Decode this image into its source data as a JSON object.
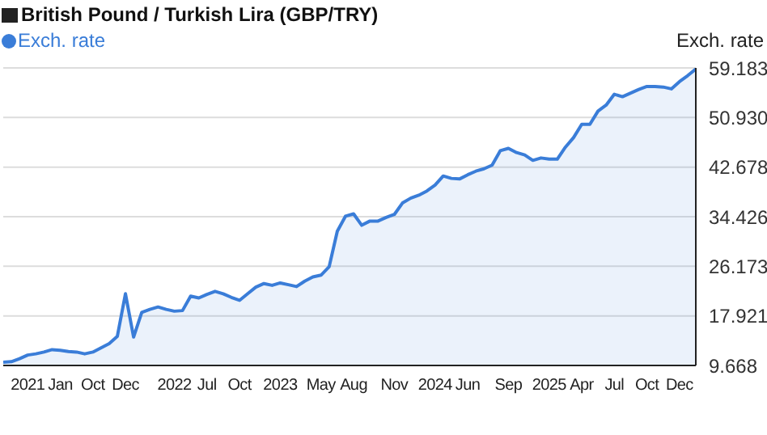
{
  "chart_data": {
    "type": "area",
    "title": "British Pound / Turkish Lira (GBP/TRY)",
    "ylabel": "Exch. rate",
    "categories": [
      null,
      null,
      null,
      "2021",
      null,
      null,
      null,
      "Jan",
      null,
      null,
      null,
      "Oct",
      null,
      null,
      null,
      "Dec",
      null,
      null,
      null,
      null,
      null,
      "2022",
      null,
      null,
      null,
      "Jul",
      null,
      null,
      null,
      "Oct",
      null,
      null,
      null,
      null,
      "2023",
      null,
      null,
      null,
      null,
      "May",
      null,
      null,
      null,
      "Aug",
      null,
      null,
      null,
      null,
      "Nov",
      null,
      null,
      null,
      null,
      "2024",
      null,
      null,
      null,
      "Jun",
      null,
      null,
      null,
      null,
      "Sep",
      null,
      null,
      null,
      null,
      "2025",
      null,
      null,
      null,
      "Apr",
      null,
      null,
      null,
      "Jul",
      null,
      null,
      null,
      "Oct",
      null,
      null,
      null,
      "Dec",
      null,
      null
    ],
    "series": [
      {
        "name": "Exch. rate",
        "color": "#3a7dd8",
        "values": [
          10.2,
          10.3,
          10.8,
          11.4,
          11.6,
          11.9,
          12.3,
          12.2,
          12.0,
          11.9,
          11.6,
          11.9,
          12.6,
          13.3,
          14.5,
          21.6,
          14.4,
          18.5,
          19.0,
          19.4,
          19.0,
          18.7,
          18.8,
          21.2,
          20.9,
          21.5,
          22.0,
          21.6,
          21.0,
          20.5,
          21.6,
          22.7,
          23.3,
          23.0,
          23.4,
          23.1,
          22.8,
          23.7,
          24.4,
          24.7,
          26.1,
          32.0,
          34.5,
          34.9,
          33.0,
          33.7,
          33.7,
          34.3,
          34.8,
          36.7,
          37.5,
          38.0,
          38.7,
          39.7,
          41.2,
          40.8,
          40.7,
          41.4,
          42.0,
          42.4,
          43.0,
          45.4,
          45.8,
          45.1,
          44.7,
          43.8,
          44.2,
          44.0,
          44.0,
          46.0,
          47.6,
          49.8,
          49.8,
          52.0,
          53.0,
          54.8,
          54.4,
          55.0,
          55.6,
          56.1,
          56.1,
          56.0,
          55.7,
          56.9,
          57.9,
          59.0
        ]
      }
    ],
    "ylim": [
      9.668,
      59.183
    ],
    "yticks": [
      {
        "value": 9.668,
        "label": "9.668"
      },
      {
        "value": 17.921,
        "label": "17.921"
      },
      {
        "value": 26.173,
        "label": "26.173"
      },
      {
        "value": 34.426,
        "label": "34.426"
      },
      {
        "value": 42.678,
        "label": "42.678"
      },
      {
        "value": 50.93,
        "label": "50.930"
      },
      {
        "value": 59.183,
        "label": "59.183"
      }
    ],
    "grid": "y",
    "legend": "top left"
  }
}
